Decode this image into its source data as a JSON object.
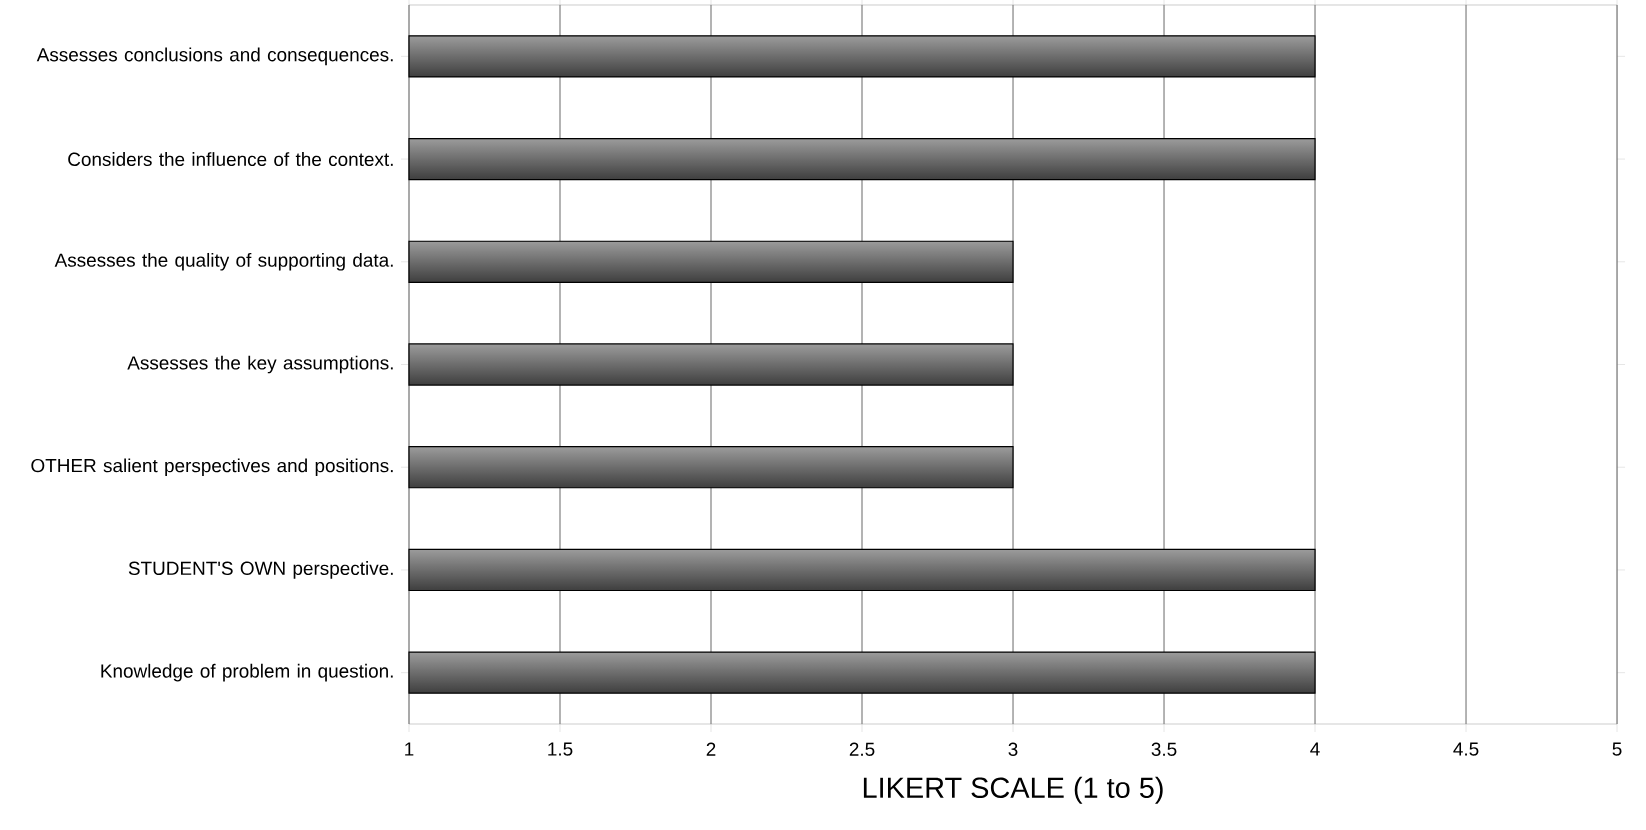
{
  "chart_data": {
    "type": "bar",
    "orientation": "horizontal",
    "categories": [
      "Assesses conclusions and consequences.",
      "Considers the influence of the context.",
      "Assesses the quality of supporting data.",
      "Assesses the key assumptions.",
      "OTHER salient perspectives and positions.",
      "STUDENT'S OWN perspective.",
      "Knowledge of problem in question."
    ],
    "values": [
      4,
      4,
      3,
      3,
      3,
      4,
      4
    ],
    "color": "#5a5a5a",
    "xlabel": "LIKERT  SCALE (1  to  5)",
    "xlim": [
      1,
      5
    ],
    "xticks": [
      1,
      1.5,
      2,
      2.5,
      3,
      3.5,
      4,
      4.5,
      5
    ],
    "grid": "x"
  }
}
